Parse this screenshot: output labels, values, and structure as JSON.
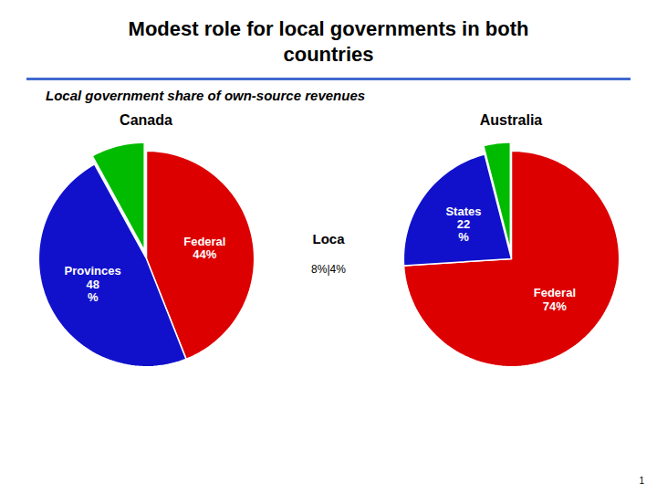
{
  "title": "Modest role for local governments in both\ncountries",
  "subtitle": "Local government share of own-source revenues",
  "annotations": [
    "Loca",
    "8%|4%",
    "1"
  ],
  "chart_data": [
    {
      "type": "pie",
      "title": "Canada",
      "categories": [
        "Federal\n44%",
        "Provinces\n48\n%",
        null
      ],
      "values": [
        44,
        48,
        8
      ],
      "colors": [
        "#DD0000",
        "#1111CC",
        "#00BB00"
      ]
    },
    {
      "type": "pie",
      "title": "Australia",
      "categories": [
        "Federal\n74%",
        "States\n22\n%",
        null
      ],
      "values": [
        74,
        22,
        4
      ],
      "colors": [
        "#DD0000",
        "#1111CC",
        "#00BB00"
      ]
    }
  ]
}
